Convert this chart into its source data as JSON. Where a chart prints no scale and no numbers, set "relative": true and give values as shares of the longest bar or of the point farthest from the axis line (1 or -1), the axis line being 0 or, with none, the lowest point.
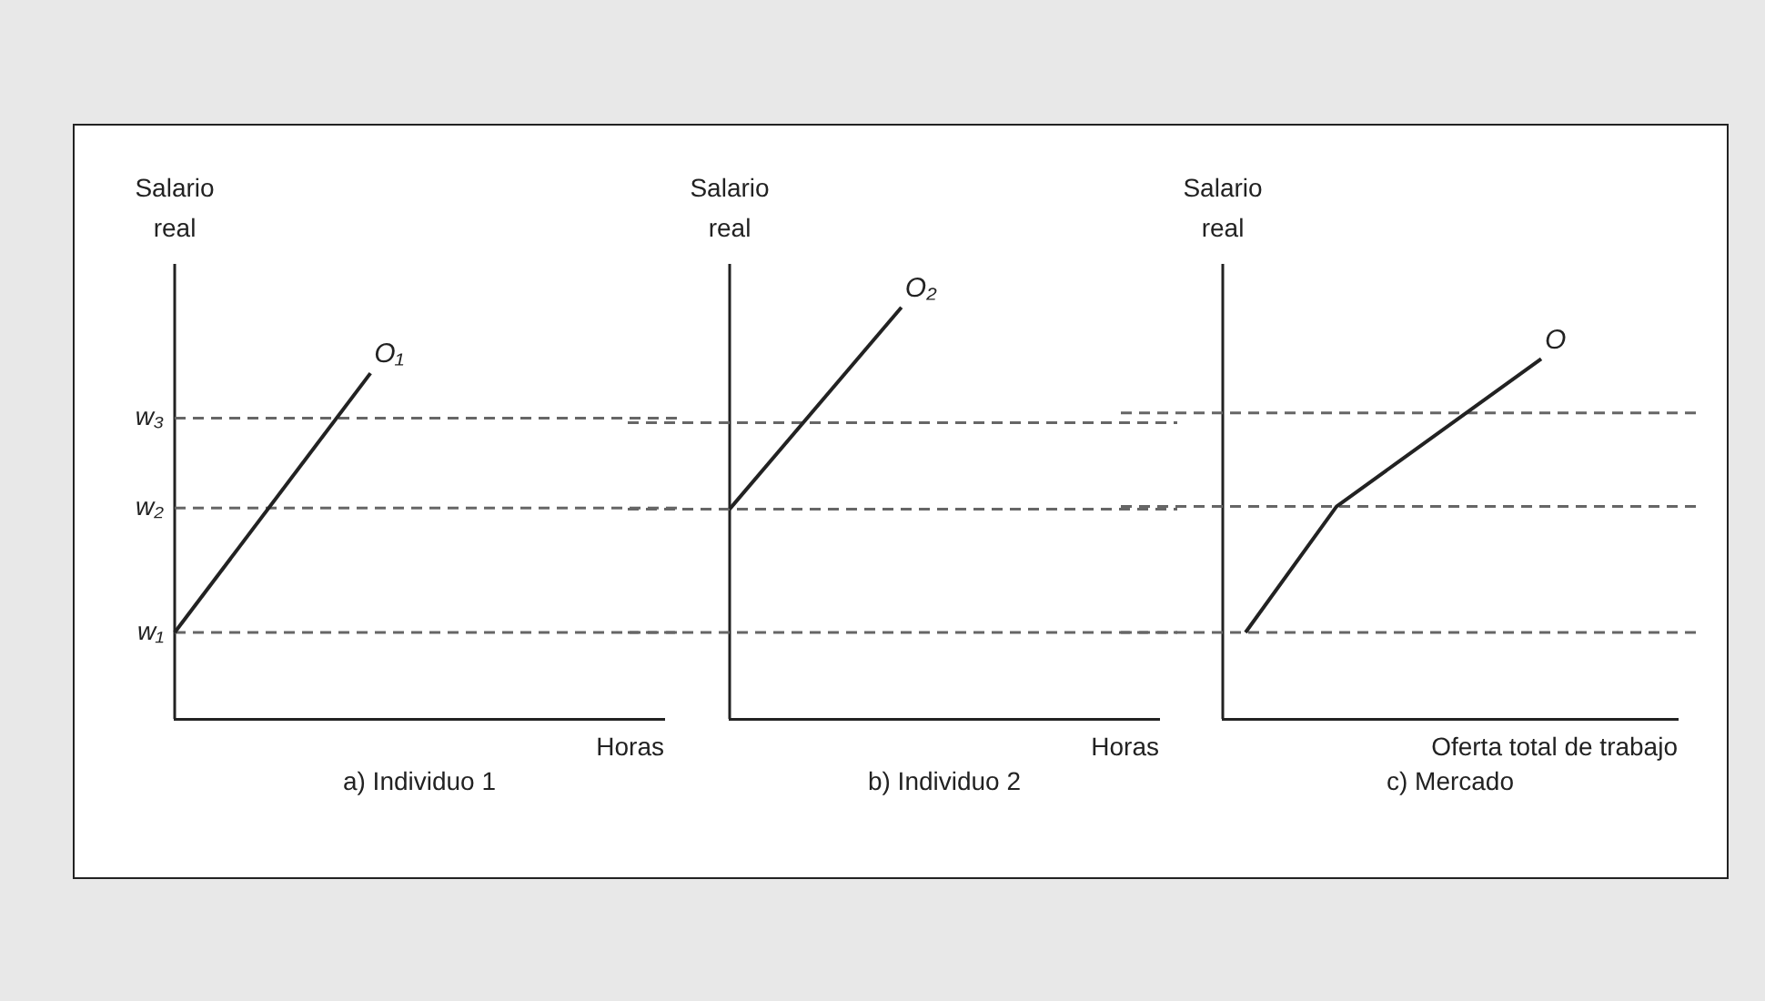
{
  "chart_data": [
    {
      "type": "line",
      "title": "a) Individuo 1",
      "xlabel": "Horas",
      "ylabel": "Salario real",
      "relative": true,
      "categories": [
        null,
        null,
        null,
        null,
        null,
        null,
        null,
        null,
        null,
        null,
        null,
        null,
        null,
        null,
        null,
        null,
        null,
        null,
        null,
        null,
        null
      ],
      "series": [
        {
          "name": "O₁",
          "color": "#222222",
          "values": [
            0.25,
            null,
            null,
            null,
            null,
            null,
            null,
            null,
            1,
            null,
            null,
            null,
            null,
            null,
            null,
            null,
            null,
            null,
            null,
            null,
            null
          ]
        }
      ],
      "ref_lines": [
        {
          "axis": "y",
          "value": 0.25,
          "label": "w₁",
          "line_style": "dashed"
        },
        {
          "axis": "y",
          "value": 0.61,
          "label": "w₂",
          "line_style": "dashed"
        },
        {
          "axis": "y",
          "value": 0.87,
          "label": "w₃",
          "line_style": "dashed"
        }
      ]
    },
    {
      "type": "line",
      "title": "b) Individuo 2",
      "xlabel": "Horas",
      "ylabel": "Salario real",
      "relative": true,
      "categories": [
        null,
        null,
        null,
        null,
        null,
        null,
        null,
        null,
        null,
        null,
        null,
        null,
        null,
        null,
        null,
        null,
        null,
        null,
        null,
        null,
        null
      ],
      "series": [
        {
          "name": "O₂",
          "color": "#222222",
          "values": [
            0.51,
            null,
            null,
            null,
            null,
            null,
            null,
            null,
            1,
            null,
            null,
            null,
            null,
            null,
            null,
            null,
            null,
            null,
            null,
            null,
            null
          ]
        }
      ],
      "ref_lines": [
        {
          "axis": "y",
          "value": 0.21,
          "line_style": "dashed"
        },
        {
          "axis": "y",
          "value": 0.51,
          "line_style": "dashed"
        },
        {
          "axis": "y",
          "value": 0.72,
          "line_style": "dashed"
        }
      ]
    },
    {
      "type": "line",
      "title": "c) Mercado",
      "xlabel": "Oferta total de trabajo",
      "ylabel": "Salario real",
      "relative": true,
      "categories": [
        null,
        null,
        null,
        null,
        null,
        null,
        null,
        null,
        null,
        null,
        null,
        null,
        null,
        null,
        null,
        null,
        null,
        null,
        null,
        null,
        null
      ],
      "series": [
        {
          "name": "O",
          "color": "#222222",
          "values": [
            null,
            0.24,
            null,
            null,
            null,
            0.59,
            null,
            null,
            null,
            null,
            null,
            null,
            null,
            null,
            1,
            null,
            null,
            null,
            null,
            null,
            null
          ]
        }
      ],
      "ref_lines": [
        {
          "axis": "y",
          "value": 0.24,
          "line_style": "dashed"
        },
        {
          "axis": "y",
          "value": 0.59,
          "line_style": "dashed"
        },
        {
          "axis": "y",
          "value": 0.85,
          "line_style": "dashed"
        }
      ]
    }
  ]
}
